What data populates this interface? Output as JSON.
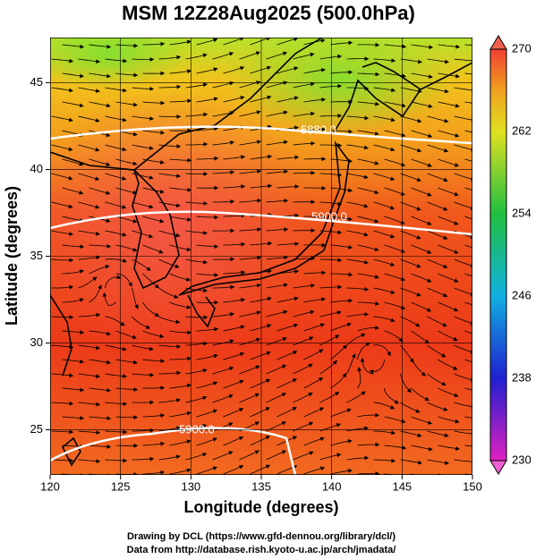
{
  "chart_data": {
    "type": "field",
    "title": "MSM 12Z28Aug2025 (500.0hPa)",
    "x_label": "Longitude (degrees)",
    "y_label": "Latitude  (degrees)",
    "xlim": [
      120,
      150
    ],
    "ylim": [
      22.4,
      47.6
    ],
    "xticks": [
      120,
      125,
      130,
      135,
      140,
      145,
      150
    ],
    "yticks": [
      25,
      30,
      35,
      40,
      45
    ],
    "colorbar": {
      "lim": [
        230,
        270
      ],
      "ticks": [
        230,
        238,
        246,
        254,
        262,
        270
      ]
    },
    "contours": [
      {
        "value": 5880,
        "label": "5880.0"
      },
      {
        "value": 5900,
        "label": "5900.0"
      },
      {
        "value": 5900,
        "label": "5900.0"
      }
    ],
    "credits": [
      "Drawing by DCL (https://www.gfd-dennou.org/library/dcl/)",
      "Data from http://database.rish.kyoto-u.ac.jp/arch/jmadata/"
    ]
  }
}
